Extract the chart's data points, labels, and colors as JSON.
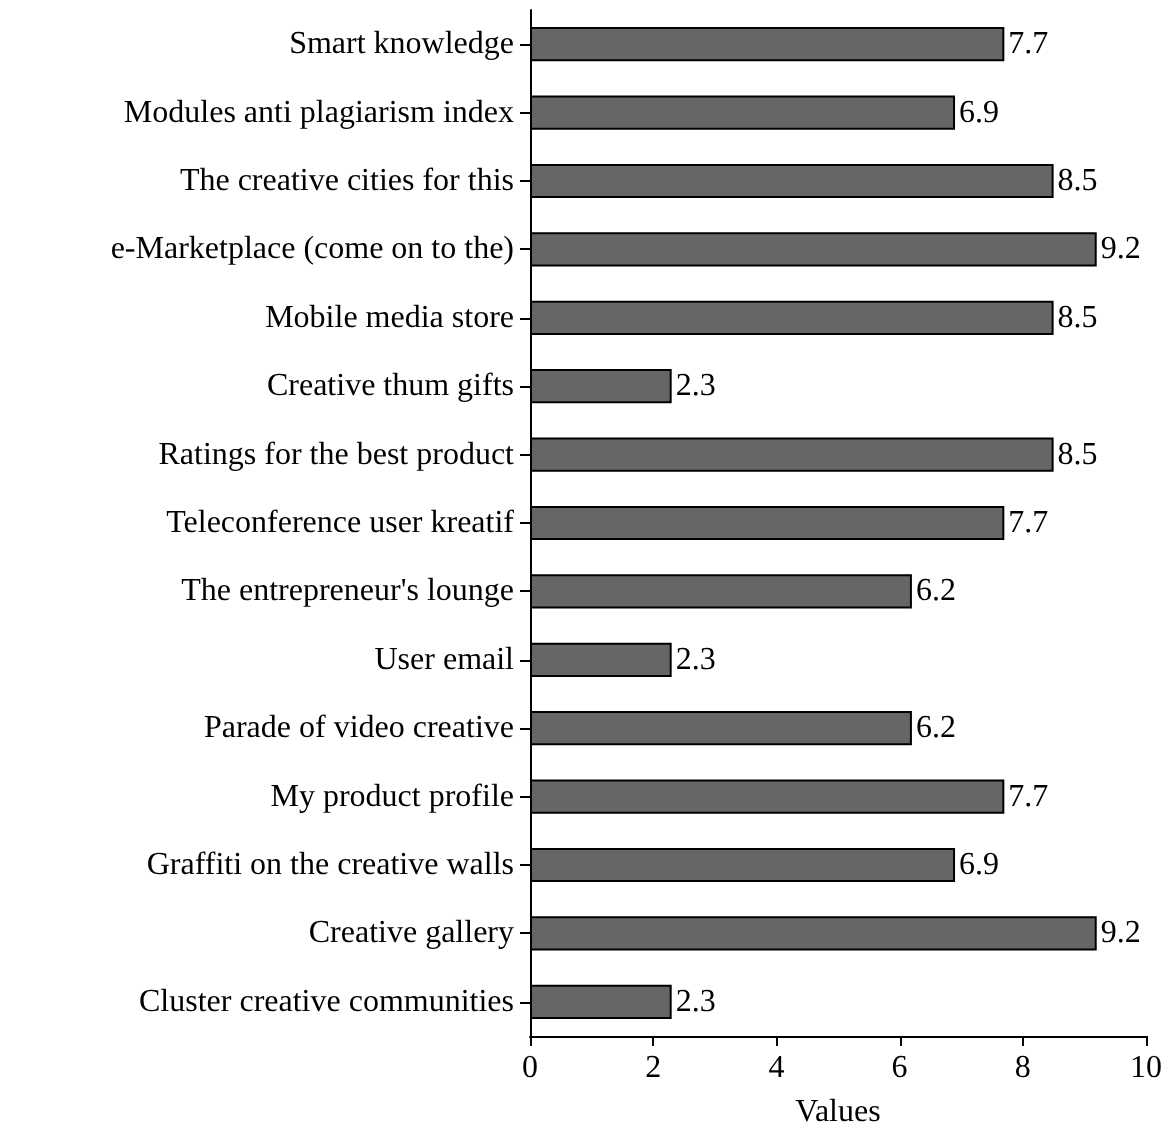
{
  "chart_data": {
    "type": "bar",
    "orientation": "horizontal",
    "xlabel": "Values",
    "categories": [
      "Smart knowledge",
      "Modules anti plagiarism index",
      "The creative cities for this",
      "e-Marketplace (come on to the)",
      "Mobile media store",
      "Creative thum gifts",
      "Ratings for the best product",
      "Teleconference user kreatif",
      "The entrepreneur's lounge",
      "User email",
      "Parade of video creative",
      "My product profile",
      "Graffiti on the creative walls",
      "Creative gallery",
      "Cluster creative communities"
    ],
    "values": [
      7.7,
      6.9,
      8.5,
      9.2,
      8.5,
      2.3,
      8.5,
      7.7,
      6.2,
      2.3,
      6.2,
      7.7,
      6.9,
      9.2,
      2.3
    ],
    "color": "#666666",
    "xlim": [
      0,
      10
    ],
    "xticks": [
      0,
      2,
      4,
      6,
      8,
      10
    ],
    "data_labels": true
  }
}
